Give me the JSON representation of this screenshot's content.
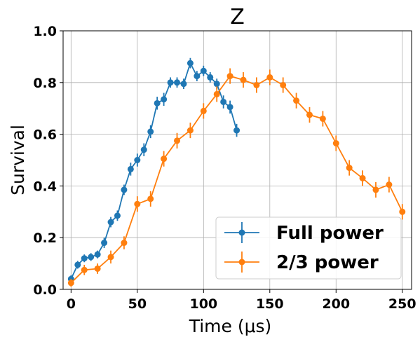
{
  "chart_data": {
    "type": "line",
    "title": "Z",
    "xlabel": "Time (μs)",
    "ylabel": "Survival",
    "xlim": [
      -6,
      257
    ],
    "ylim": [
      0,
      1.0
    ],
    "xticks": [
      0,
      50,
      100,
      150,
      200,
      250
    ],
    "yticks": [
      0.0,
      0.2,
      0.4,
      0.6,
      0.8,
      1.0
    ],
    "xtick_labels": [
      "0",
      "50",
      "100",
      "150",
      "200",
      "250"
    ],
    "ytick_labels": [
      "0.0",
      "0.2",
      "0.4",
      "0.6",
      "0.8",
      "1.0"
    ],
    "grid": true,
    "legend_position": "lower-right",
    "series": [
      {
        "name": "Full power",
        "color": "#1f77b4",
        "x": [
          0,
          5,
          10,
          15,
          20,
          25,
          30,
          35,
          40,
          45,
          50,
          55,
          60,
          65,
          70,
          75,
          80,
          85,
          90,
          95,
          100,
          105,
          110,
          115,
          120,
          125
        ],
        "y": [
          0.04,
          0.095,
          0.12,
          0.125,
          0.135,
          0.18,
          0.26,
          0.285,
          0.385,
          0.465,
          0.5,
          0.54,
          0.61,
          0.72,
          0.735,
          0.8,
          0.8,
          0.795,
          0.875,
          0.825,
          0.845,
          0.82,
          0.795,
          0.725,
          0.705,
          0.615
        ],
        "err": [
          0.015,
          0.015,
          0.015,
          0.015,
          0.015,
          0.02,
          0.02,
          0.02,
          0.02,
          0.025,
          0.025,
          0.025,
          0.025,
          0.025,
          0.025,
          0.02,
          0.02,
          0.02,
          0.02,
          0.02,
          0.02,
          0.02,
          0.02,
          0.025,
          0.025,
          0.025
        ]
      },
      {
        "name": "2/3 power",
        "color": "#ff7f0e",
        "x": [
          0,
          10,
          20,
          30,
          40,
          50,
          60,
          70,
          80,
          90,
          100,
          110,
          120,
          130,
          140,
          150,
          160,
          170,
          180,
          190,
          200,
          210,
          220,
          230,
          240,
          250
        ],
        "y": [
          0.025,
          0.075,
          0.08,
          0.125,
          0.18,
          0.33,
          0.35,
          0.505,
          0.575,
          0.615,
          0.69,
          0.755,
          0.825,
          0.81,
          0.79,
          0.82,
          0.79,
          0.73,
          0.675,
          0.66,
          0.565,
          0.47,
          0.43,
          0.385,
          0.405,
          0.3
        ],
        "err": [
          0.015,
          0.02,
          0.02,
          0.025,
          0.025,
          0.03,
          0.03,
          0.03,
          0.03,
          0.03,
          0.03,
          0.03,
          0.03,
          0.03,
          0.03,
          0.03,
          0.03,
          0.03,
          0.03,
          0.03,
          0.03,
          0.03,
          0.03,
          0.03,
          0.03,
          0.03
        ]
      }
    ]
  }
}
